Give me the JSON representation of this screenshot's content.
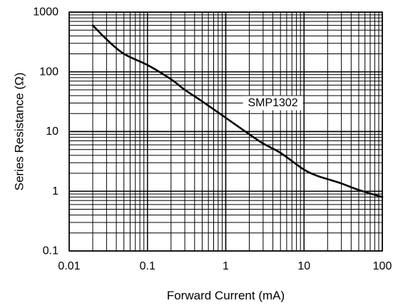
{
  "chart_data": {
    "type": "line",
    "xlabel": "Forward Current (mA)",
    "ylabel": "Series Resistance (Ω)",
    "xscale": "log",
    "yscale": "log",
    "xlim": [
      0.01,
      100
    ],
    "ylim": [
      0.1,
      1000
    ],
    "grid": true,
    "x_ticks": [
      "0.01",
      "0.1",
      "1",
      "10",
      "100"
    ],
    "y_ticks": [
      "0.1",
      "1",
      "10",
      "100",
      "1000"
    ],
    "annotation": "SMP1302",
    "series": [
      {
        "name": "SMP1302",
        "points": [
          [
            0.02,
            600
          ],
          [
            0.03,
            350
          ],
          [
            0.05,
            200
          ],
          [
            0.1,
            130
          ],
          [
            0.2,
            75
          ],
          [
            0.3,
            50
          ],
          [
            0.5,
            32
          ],
          [
            1,
            17
          ],
          [
            2,
            9
          ],
          [
            3,
            6.3
          ],
          [
            5,
            4.4
          ],
          [
            10,
            2.3
          ],
          [
            15,
            1.8
          ],
          [
            20,
            1.6
          ],
          [
            30,
            1.35
          ],
          [
            50,
            1.05
          ],
          [
            100,
            0.8
          ]
        ]
      }
    ]
  }
}
